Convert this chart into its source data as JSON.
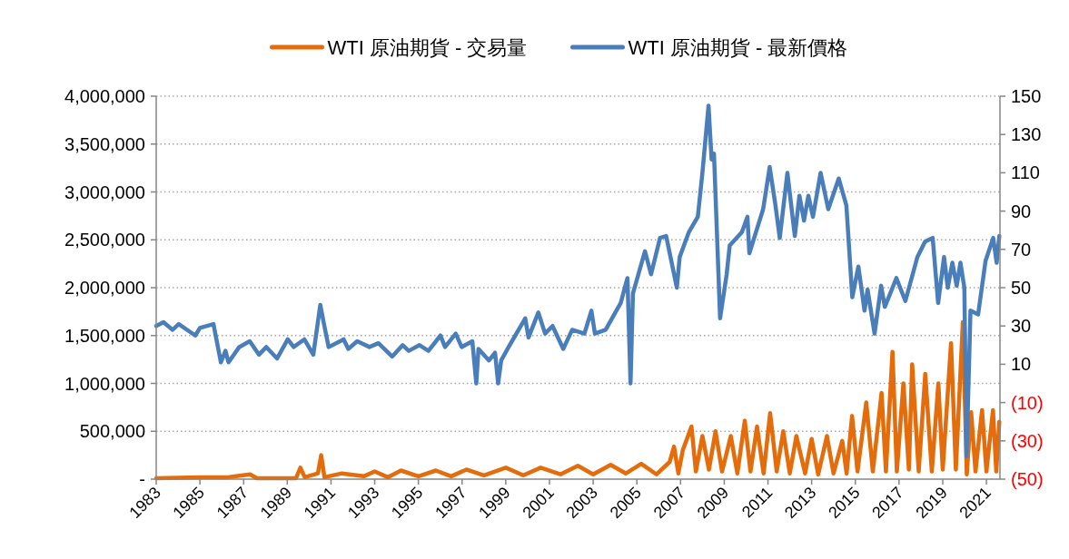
{
  "chart_data": {
    "type": "line",
    "legend": "top",
    "grid": "y",
    "xlim": [
      1983,
      2021.62
    ],
    "xticks": [
      1983,
      1985,
      1987,
      1989,
      1991,
      1993,
      1995,
      1997,
      1999,
      2001,
      2003,
      2005,
      2007,
      2009,
      2011,
      2013,
      2015,
      2017,
      2019,
      2021
    ],
    "ylim": [
      0,
      4000000
    ],
    "yticks": [
      {
        "value": 0,
        "label": "-"
      },
      {
        "value": 500000,
        "label": "500,000"
      },
      {
        "value": 1000000,
        "label": "1,000,000"
      },
      {
        "value": 1500000,
        "label": "1,500,000"
      },
      {
        "value": 2000000,
        "label": "2,000,000"
      },
      {
        "value": 2500000,
        "label": "2,500,000"
      },
      {
        "value": 3000000,
        "label": "3,000,000"
      },
      {
        "value": 3500000,
        "label": "3,500,000"
      },
      {
        "value": 4000000,
        "label": "4,000,000"
      }
    ],
    "y2lim": [
      -50,
      150
    ],
    "y2ticks": [
      {
        "value": -50,
        "label": "(50)"
      },
      {
        "value": -30,
        "label": "(30)"
      },
      {
        "value": -10,
        "label": "(10)"
      },
      10,
      30,
      50,
      70,
      90,
      110,
      130,
      150
    ],
    "series": [
      {
        "name": "WTI 原油期貨 - 交易量",
        "color": "#e46c0a",
        "x": [
          1983.0,
          1985.0,
          1986.3,
          1987.3,
          1987.6,
          1989.4,
          1989.6,
          1989.8,
          1990.4,
          1990.55,
          1990.7,
          1991.5,
          1992.5,
          1993.0,
          1993.6,
          1994.2,
          1995.0,
          1995.8,
          1996.5,
          1997.2,
          1998.0,
          1999.0,
          1999.8,
          2000.6,
          2001.5,
          2002.3,
          2003.0,
          2003.8,
          2004.5,
          2005.2,
          2005.9,
          2006.5,
          2006.7,
          2006.9,
          2007.1,
          2007.5,
          2007.7,
          2008.0,
          2008.3,
          2008.6,
          2008.9,
          2009.3,
          2009.6,
          2009.94,
          2010.2,
          2010.5,
          2010.8,
          2011.1,
          2011.4,
          2011.7,
          2012.0,
          2012.3,
          2012.7,
          2013.0,
          2013.3,
          2013.7,
          2014.0,
          2014.4,
          2014.6,
          2014.85,
          2015.1,
          2015.5,
          2015.8,
          2016.2,
          2016.4,
          2016.7,
          2016.9,
          2017.2,
          2017.45,
          2017.6,
          2017.9,
          2018.2,
          2018.5,
          2018.8,
          2019.0,
          2019.38,
          2019.6,
          2019.92,
          2020.1,
          2020.3,
          2020.5,
          2020.8,
          2021.0,
          2021.3,
          2021.45,
          2021.59
        ],
        "values": [
          10000,
          20000,
          20000,
          50000,
          10000,
          10000,
          120000,
          20000,
          60000,
          250000,
          20000,
          60000,
          30000,
          80000,
          20000,
          90000,
          30000,
          90000,
          30000,
          100000,
          40000,
          120000,
          40000,
          120000,
          50000,
          140000,
          50000,
          150000,
          60000,
          160000,
          50000,
          180000,
          340000,
          60000,
          300000,
          550000,
          80000,
          450000,
          100000,
          500000,
          80000,
          450000,
          60000,
          610000,
          80000,
          550000,
          60000,
          690000,
          80000,
          500000,
          60000,
          450000,
          60000,
          420000,
          50000,
          450000,
          60000,
          400000,
          60000,
          660000,
          80000,
          800000,
          80000,
          900000,
          80000,
          1330000,
          80000,
          1000000,
          100000,
          1200000,
          80000,
          1100000,
          80000,
          1000000,
          100000,
          1420000,
          100000,
          1640000,
          50000,
          700000,
          80000,
          720000,
          80000,
          720000,
          80000,
          600000
        ]
      },
      {
        "name": "WTI 原油期貨 - 最新價格",
        "color": "#4a7ebb",
        "axis": "y2",
        "x": [
          1983.0,
          1983.33,
          1983.75,
          1984.03,
          1984.79,
          1985.0,
          1985.62,
          1985.96,
          1986.17,
          1986.31,
          1986.8,
          1987.28,
          1987.7,
          1988.04,
          1988.53,
          1989.02,
          1989.29,
          1989.78,
          1990.19,
          1990.51,
          1990.68,
          1990.89,
          1991.58,
          1991.79,
          1992.2,
          1992.76,
          1993.17,
          1993.8,
          1994.28,
          1994.56,
          1995.05,
          1995.46,
          1996.01,
          1996.22,
          1996.71,
          1996.98,
          1997.47,
          1997.65,
          1997.75,
          1998.23,
          1998.51,
          1998.65,
          1998.79,
          1999.13,
          1999.89,
          2000.04,
          2000.49,
          2000.8,
          2001.14,
          2001.63,
          2002.04,
          2002.6,
          2002.92,
          2003.08,
          2003.57,
          2004.26,
          2004.57,
          2004.71,
          2004.82,
          2005.37,
          2005.65,
          2006.06,
          2006.34,
          2006.83,
          2006.96,
          2007.38,
          2007.79,
          2008.0,
          2008.28,
          2008.42,
          2008.53,
          2008.81,
          2009.11,
          2009.25,
          2009.81,
          2010.06,
          2010.15,
          2010.78,
          2011.08,
          2011.33,
          2011.54,
          2011.89,
          2012.23,
          2012.44,
          2012.65,
          2012.85,
          2013.06,
          2013.41,
          2013.76,
          2014.24,
          2014.59,
          2014.86,
          2015.14,
          2015.42,
          2015.56,
          2015.88,
          2016.18,
          2016.35,
          2016.88,
          2017.29,
          2017.84,
          2018.19,
          2018.54,
          2018.79,
          2019.06,
          2019.23,
          2019.44,
          2019.64,
          2019.81,
          2019.99,
          2020.09,
          2020.27,
          2020.62,
          2020.96,
          2021.31,
          2021.47,
          2021.59
        ],
        "values": [
          30,
          32,
          28,
          31,
          25,
          29,
          31,
          11,
          17,
          11,
          19,
          22,
          15,
          19,
          13,
          23,
          19,
          23,
          15,
          41,
          31,
          19,
          23,
          18,
          22,
          19,
          21,
          14,
          20,
          17,
          20,
          17,
          25,
          19,
          26,
          19,
          22,
          0,
          18,
          12,
          16,
          0,
          12,
          19,
          34,
          24,
          37,
          26,
          30,
          18,
          28,
          26,
          38,
          26,
          28,
          42,
          55,
          0,
          47,
          69,
          57,
          76,
          77,
          50,
          66,
          79,
          87,
          110,
          145,
          117,
          120,
          34,
          57,
          72,
          79,
          87,
          68,
          91,
          113,
          94,
          76,
          110,
          77,
          98,
          85,
          98,
          87,
          110,
          91,
          107,
          93,
          45,
          61,
          38,
          49,
          26,
          51,
          40,
          55,
          43,
          66,
          74,
          76,
          42,
          66,
          50,
          63,
          51,
          63,
          50,
          -38,
          38,
          36,
          64,
          76,
          63,
          77
        ]
      }
    ]
  }
}
